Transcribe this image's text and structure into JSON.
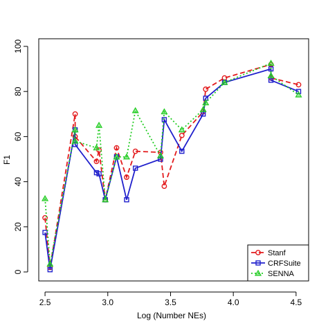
{
  "chart_data": {
    "type": "line",
    "title": "",
    "xlabel": "Log (Number NEs)",
    "ylabel": "F1",
    "xlim": [
      2.45,
      4.6
    ],
    "ylim": [
      0,
      100
    ],
    "xticks": [
      2.5,
      3.0,
      3.5,
      4.0,
      4.5
    ],
    "xtick_labels": [
      "2.5",
      "3.0",
      "3.5",
      "4.0",
      "4.5"
    ],
    "yticks": [
      0,
      20,
      40,
      60,
      80,
      100
    ],
    "ytick_labels": [
      "0",
      "20",
      "40",
      "60",
      "80",
      "100"
    ],
    "grid": false,
    "legend_position": "bottom-right",
    "series": [
      {
        "name": "Stanf",
        "color": "#e31a1c",
        "dash": "dashed",
        "marker": "circle",
        "points": [
          [
            2.5,
            24
          ],
          [
            2.54,
            2
          ],
          [
            2.74,
            70
          ],
          [
            2.74,
            60
          ],
          [
            2.91,
            49
          ],
          [
            2.93,
            54
          ],
          [
            2.98,
            32
          ],
          [
            3.07,
            55
          ],
          [
            3.15,
            42
          ],
          [
            3.22,
            53.5
          ],
          [
            3.42,
            53
          ],
          [
            3.45,
            38
          ],
          [
            3.59,
            60.5
          ],
          [
            3.76,
            71
          ],
          [
            3.78,
            81
          ],
          [
            3.93,
            86
          ],
          [
            4.3,
            92
          ],
          [
            4.3,
            86
          ],
          [
            4.52,
            83
          ]
        ]
      },
      {
        "name": "CRFSuite",
        "color": "#1f1fcc",
        "dash": "solid",
        "marker": "square",
        "points": [
          [
            2.5,
            17.5
          ],
          [
            2.54,
            1
          ],
          [
            2.74,
            63
          ],
          [
            2.74,
            56.5
          ],
          [
            2.91,
            44
          ],
          [
            2.93,
            43.5
          ],
          [
            2.98,
            32
          ],
          [
            3.07,
            51
          ],
          [
            3.15,
            32
          ],
          [
            3.22,
            46
          ],
          [
            3.42,
            50
          ],
          [
            3.45,
            67.5
          ],
          [
            3.59,
            53.5
          ],
          [
            3.76,
            70
          ],
          [
            3.78,
            77
          ],
          [
            3.93,
            84
          ],
          [
            4.3,
            90
          ],
          [
            4.3,
            85
          ],
          [
            4.52,
            80
          ]
        ]
      },
      {
        "name": "SENNA",
        "color": "#22cc22",
        "dash": "dotted",
        "marker": "triangle",
        "points": [
          [
            2.5,
            32.5
          ],
          [
            2.54,
            3.5
          ],
          [
            2.74,
            63
          ],
          [
            2.74,
            58
          ],
          [
            2.91,
            55
          ],
          [
            2.93,
            65
          ],
          [
            2.98,
            32
          ],
          [
            3.07,
            51
          ],
          [
            3.15,
            51
          ],
          [
            3.22,
            71.5
          ],
          [
            3.42,
            51.5
          ],
          [
            3.45,
            71
          ],
          [
            3.59,
            63
          ],
          [
            3.76,
            72
          ],
          [
            3.78,
            75
          ],
          [
            3.93,
            84
          ],
          [
            4.3,
            92.5
          ],
          [
            4.3,
            87
          ],
          [
            4.52,
            78.5
          ]
        ]
      }
    ]
  }
}
